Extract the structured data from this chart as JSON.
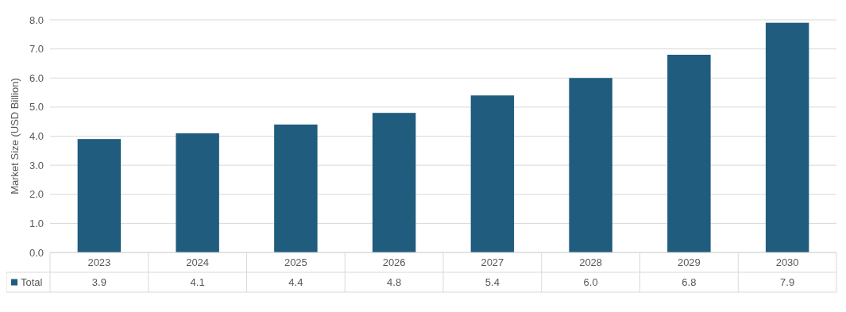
{
  "chart_data": {
    "type": "bar",
    "ylabel": "Market Size (USD Billion)",
    "categories": [
      "2023",
      "2024",
      "2025",
      "2026",
      "2027",
      "2028",
      "2029",
      "2030"
    ],
    "series": [
      {
        "name": "Total",
        "color": "#1f5c7d",
        "values": [
          3.9,
          4.1,
          4.4,
          4.8,
          5.4,
          6.0,
          6.8,
          7.9
        ],
        "value_labels": [
          "3.9",
          "4.1",
          "4.4",
          "4.8",
          "5.4",
          "6.0",
          "6.8",
          "7.9"
        ]
      }
    ],
    "ylim": [
      0,
      8
    ],
    "yticks": [
      {
        "value": 0,
        "label": "0.0"
      },
      {
        "value": 1,
        "label": "1.0"
      },
      {
        "value": 2,
        "label": "2.0"
      },
      {
        "value": 3,
        "label": "3.0"
      },
      {
        "value": 4,
        "label": "4.0"
      },
      {
        "value": 5,
        "label": "5.0"
      },
      {
        "value": 6,
        "label": "6.0"
      },
      {
        "value": 7,
        "label": "7.0"
      },
      {
        "value": 8,
        "label": "8.0"
      }
    ],
    "grid": "y",
    "legend": "bottom"
  }
}
